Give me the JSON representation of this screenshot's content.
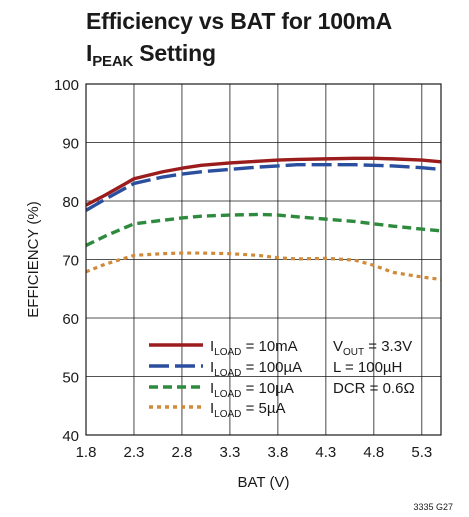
{
  "title": {
    "line1": "Efficiency vs BAT for 100mA",
    "line2_main": "I",
    "line2_sub": "PEAK",
    "line2_rest": " Setting"
  },
  "figure_code": "3335 G27",
  "chart_data": {
    "type": "line",
    "xlabel": "BAT (V)",
    "ylabel": "EFFICIENCY (%)",
    "xlim": [
      1.8,
      5.5
    ],
    "ylim": [
      40,
      100
    ],
    "xticks": [
      1.8,
      2.3,
      2.8,
      3.3,
      3.8,
      4.3,
      4.8,
      5.3
    ],
    "xtick_labels": [
      "1.8",
      "2.3",
      "2.8",
      "3.3",
      "3.8",
      "4.3",
      "4.8",
      "5.3"
    ],
    "yticks": [
      40,
      50,
      60,
      70,
      80,
      90,
      100
    ],
    "ytick_labels": [
      "40",
      "50",
      "60",
      "70",
      "80",
      "90",
      "100"
    ],
    "grid": true,
    "legend_position": "bottom-right",
    "conditions": [
      "V_OUT = 3.3V",
      "L = 100µH",
      "DCR = 0.6Ω"
    ],
    "series": [
      {
        "name": "I_LOAD = 10mA",
        "label_main": "I",
        "label_sub": "LOAD",
        "label_rest": " = 10mA",
        "color": "#9b1c1c",
        "dash": "solid",
        "x": [
          1.8,
          2.0,
          2.3,
          2.6,
          2.8,
          3.0,
          3.3,
          3.6,
          3.8,
          4.0,
          4.3,
          4.6,
          4.8,
          5.0,
          5.3,
          5.5
        ],
        "y": [
          79.3,
          81.0,
          83.8,
          85.0,
          85.6,
          86.1,
          86.5,
          86.8,
          87.0,
          87.1,
          87.2,
          87.3,
          87.3,
          87.2,
          87.0,
          86.7
        ]
      },
      {
        "name": "I_LOAD = 100µA",
        "label_main": "I",
        "label_sub": "LOAD",
        "label_rest": " = 100µA",
        "color": "#2a4f9e",
        "dash": "long-dash",
        "x": [
          1.8,
          2.0,
          2.3,
          2.6,
          2.8,
          3.0,
          3.3,
          3.6,
          3.8,
          4.0,
          4.3,
          4.6,
          4.8,
          5.0,
          5.3,
          5.5
        ],
        "y": [
          78.4,
          80.3,
          83.0,
          84.1,
          84.6,
          85.0,
          85.4,
          85.8,
          86.0,
          86.2,
          86.2,
          86.2,
          86.1,
          86.0,
          85.7,
          85.4
        ]
      },
      {
        "name": "I_LOAD = 10µA",
        "label_main": "I",
        "label_sub": "LOAD",
        "label_rest": " = 10µA",
        "color": "#2e8b3e",
        "dash": "dash",
        "x": [
          1.8,
          2.0,
          2.3,
          2.6,
          2.8,
          3.0,
          3.3,
          3.6,
          3.8,
          4.0,
          4.3,
          4.6,
          4.8,
          5.0,
          5.3,
          5.5
        ],
        "y": [
          72.4,
          74.0,
          76.1,
          76.7,
          77.1,
          77.4,
          77.6,
          77.7,
          77.6,
          77.3,
          76.9,
          76.5,
          76.1,
          75.7,
          75.2,
          74.9
        ]
      },
      {
        "name": "I_LOAD = 5µA",
        "label_main": "I",
        "label_sub": "LOAD",
        "label_rest": " = 5µA",
        "color": "#d08a3a",
        "dash": "dot",
        "x": [
          1.8,
          2.0,
          2.3,
          2.6,
          2.8,
          3.0,
          3.3,
          3.6,
          3.8,
          4.0,
          4.3,
          4.6,
          4.8,
          5.0,
          5.3,
          5.5
        ],
        "y": [
          67.9,
          69.2,
          70.7,
          71.0,
          71.1,
          71.1,
          71.0,
          70.7,
          70.3,
          70.1,
          70.2,
          69.9,
          69.0,
          67.8,
          67.0,
          66.6
        ]
      }
    ]
  }
}
